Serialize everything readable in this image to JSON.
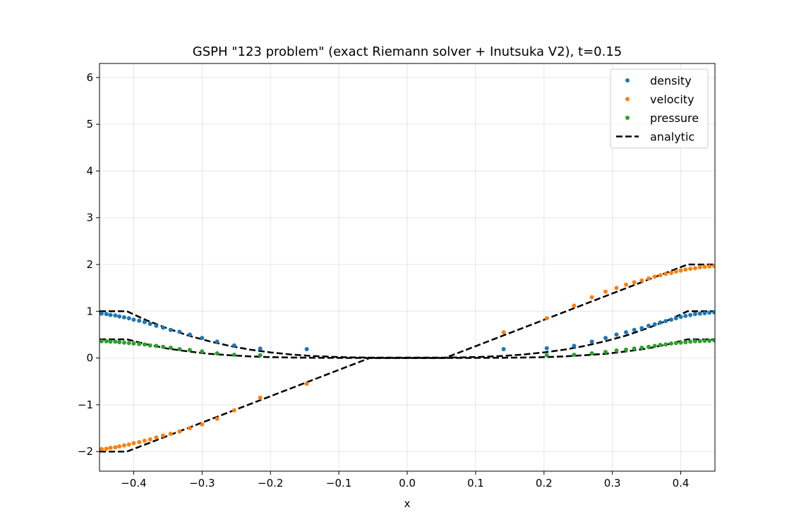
{
  "chart_data": {
    "type": "scatter",
    "title": "GSPH \"123 problem\" (exact Riemann solver + Inutsuka V2), t=0.15",
    "xlabel": "x",
    "ylabel": "",
    "xlim": [
      -0.45,
      0.45
    ],
    "ylim": [
      -2.42,
      6.3
    ],
    "grid": true,
    "legend_position": "top-right",
    "x_ticks": [
      -0.4,
      -0.3,
      -0.2,
      -0.1,
      0.0,
      0.1,
      0.2,
      0.3,
      0.4
    ],
    "x_tick_labels": [
      "−0.4",
      "−0.3",
      "−0.2",
      "−0.1",
      "0.0",
      "0.1",
      "0.2",
      "0.3",
      "0.4"
    ],
    "y_ticks": [
      -2,
      -1,
      0,
      1,
      2,
      3,
      4,
      5,
      6
    ],
    "y_tick_labels": [
      "−2",
      "−1",
      "0",
      "1",
      "2",
      "3",
      "4",
      "5",
      "6"
    ],
    "series": [
      {
        "name": "density",
        "kind": "scatter",
        "color": "#1f77b4",
        "x": [
          -0.447,
          -0.44,
          -0.434,
          -0.427,
          -0.421,
          -0.414,
          -0.407,
          -0.4,
          -0.392,
          -0.384,
          -0.376,
          -0.367,
          -0.357,
          -0.346,
          -0.333,
          -0.318,
          -0.3,
          -0.278,
          -0.253,
          -0.215,
          -0.147,
          0.141,
          0.204,
          0.244,
          0.27,
          0.29,
          0.306,
          0.32,
          0.332,
          0.343,
          0.353,
          0.362,
          0.37,
          0.378,
          0.386,
          0.393,
          0.4,
          0.407,
          0.414,
          0.421,
          0.428,
          0.435,
          0.442,
          0.449
        ],
        "y": [
          0.95,
          0.94,
          0.92,
          0.91,
          0.89,
          0.87,
          0.85,
          0.82,
          0.8,
          0.77,
          0.73,
          0.69,
          0.65,
          0.6,
          0.56,
          0.5,
          0.43,
          0.35,
          0.27,
          0.2,
          0.19,
          0.19,
          0.21,
          0.26,
          0.35,
          0.43,
          0.5,
          0.55,
          0.6,
          0.64,
          0.69,
          0.72,
          0.76,
          0.79,
          0.82,
          0.85,
          0.88,
          0.9,
          0.92,
          0.94,
          0.95,
          0.96,
          0.97,
          0.98
        ]
      },
      {
        "name": "velocity",
        "kind": "scatter",
        "color": "#ff7f0e",
        "x": [
          -0.447,
          -0.44,
          -0.434,
          -0.427,
          -0.421,
          -0.414,
          -0.407,
          -0.4,
          -0.392,
          -0.384,
          -0.376,
          -0.367,
          -0.357,
          -0.346,
          -0.333,
          -0.318,
          -0.3,
          -0.278,
          -0.253,
          -0.215,
          -0.147,
          0.141,
          0.204,
          0.244,
          0.27,
          0.29,
          0.306,
          0.32,
          0.332,
          0.343,
          0.353,
          0.362,
          0.37,
          0.378,
          0.386,
          0.393,
          0.4,
          0.407,
          0.414,
          0.421,
          0.428,
          0.435,
          0.442,
          0.449
        ],
        "y": [
          -1.95,
          -1.94,
          -1.92,
          -1.91,
          -1.89,
          -1.87,
          -1.85,
          -1.82,
          -1.8,
          -1.77,
          -1.74,
          -1.7,
          -1.66,
          -1.62,
          -1.57,
          -1.5,
          -1.42,
          -1.3,
          -1.12,
          -0.85,
          -0.55,
          0.55,
          0.85,
          1.12,
          1.3,
          1.42,
          1.5,
          1.57,
          1.62,
          1.66,
          1.7,
          1.74,
          1.77,
          1.8,
          1.82,
          1.85,
          1.87,
          1.89,
          1.91,
          1.92,
          1.94,
          1.95,
          1.96,
          1.97
        ]
      },
      {
        "name": "pressure",
        "kind": "scatter",
        "color": "#2ca02c",
        "x": [
          -0.447,
          -0.44,
          -0.434,
          -0.427,
          -0.421,
          -0.414,
          -0.407,
          -0.4,
          -0.392,
          -0.384,
          -0.376,
          -0.367,
          -0.357,
          -0.346,
          -0.333,
          -0.318,
          -0.3,
          -0.278,
          -0.253,
          -0.215,
          0.204,
          0.244,
          0.27,
          0.29,
          0.306,
          0.32,
          0.332,
          0.343,
          0.353,
          0.362,
          0.37,
          0.378,
          0.386,
          0.393,
          0.4,
          0.407,
          0.414,
          0.421,
          0.428,
          0.435,
          0.442,
          0.449
        ],
        "y": [
          0.36,
          0.36,
          0.35,
          0.35,
          0.34,
          0.33,
          0.32,
          0.31,
          0.3,
          0.29,
          0.27,
          0.26,
          0.24,
          0.22,
          0.19,
          0.17,
          0.14,
          0.1,
          0.07,
          0.06,
          0.06,
          0.07,
          0.1,
          0.13,
          0.16,
          0.18,
          0.2,
          0.22,
          0.24,
          0.26,
          0.28,
          0.29,
          0.31,
          0.32,
          0.33,
          0.34,
          0.35,
          0.36,
          0.36,
          0.37,
          0.37,
          0.38
        ]
      },
      {
        "name": "analytic",
        "kind": "dashed-line",
        "color": "#000000",
        "lines": [
          {
            "x": [
              -0.45,
              -0.41,
              -0.38,
              -0.35,
              -0.32,
              -0.29,
              -0.26,
              -0.23,
              -0.2,
              -0.17,
              -0.14,
              -0.11,
              -0.08,
              -0.055,
              0.055,
              0.08,
              0.11,
              0.14,
              0.17,
              0.2,
              0.23,
              0.26,
              0.29,
              0.32,
              0.35,
              0.38,
              0.41,
              0.45
            ],
            "y": [
              1.0,
              1.0,
              0.8,
              0.63,
              0.48,
              0.36,
              0.26,
              0.18,
              0.12,
              0.075,
              0.045,
              0.025,
              0.013,
              0.009,
              0.009,
              0.013,
              0.025,
              0.045,
              0.075,
              0.12,
              0.18,
              0.26,
              0.36,
              0.48,
              0.63,
              0.8,
              1.0,
              1.0
            ]
          },
          {
            "x": [
              -0.45,
              -0.41,
              -0.055,
              0.055,
              0.41,
              0.45
            ],
            "y": [
              -2.0,
              -2.0,
              0.0,
              0.0,
              2.0,
              2.0
            ]
          },
          {
            "x": [
              -0.45,
              -0.41,
              -0.38,
              -0.35,
              -0.32,
              -0.29,
              -0.26,
              -0.23,
              -0.2,
              -0.17,
              -0.14,
              -0.11,
              -0.08,
              -0.055,
              0.055,
              0.08,
              0.11,
              0.14,
              0.17,
              0.2,
              0.23,
              0.26,
              0.29,
              0.32,
              0.35,
              0.38,
              0.41,
              0.45
            ],
            "y": [
              0.4,
              0.4,
              0.29,
              0.2,
              0.14,
              0.09,
              0.06,
              0.035,
              0.02,
              0.011,
              0.006,
              0.003,
              0.002,
              0.001,
              0.001,
              0.002,
              0.003,
              0.006,
              0.011,
              0.02,
              0.035,
              0.06,
              0.09,
              0.14,
              0.2,
              0.29,
              0.4,
              0.4
            ]
          }
        ]
      }
    ]
  }
}
